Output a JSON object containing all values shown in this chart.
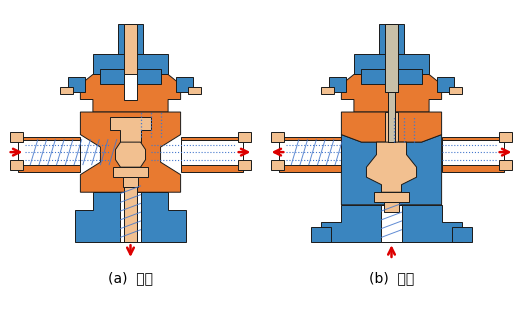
{
  "label_a": "(a)  分流",
  "label_b": "(b)  合流",
  "bg_color": "#ffffff",
  "orange": "#E87A30",
  "orange_light": "#F2C090",
  "blue": "#3A85BF",
  "red_arrow": "#DD0000",
  "flow_blue": "#4477CC",
  "black": "#1a1a1a",
  "label_fontsize": 10,
  "fig_width": 5.22,
  "fig_height": 3.29,
  "dpi": 100
}
